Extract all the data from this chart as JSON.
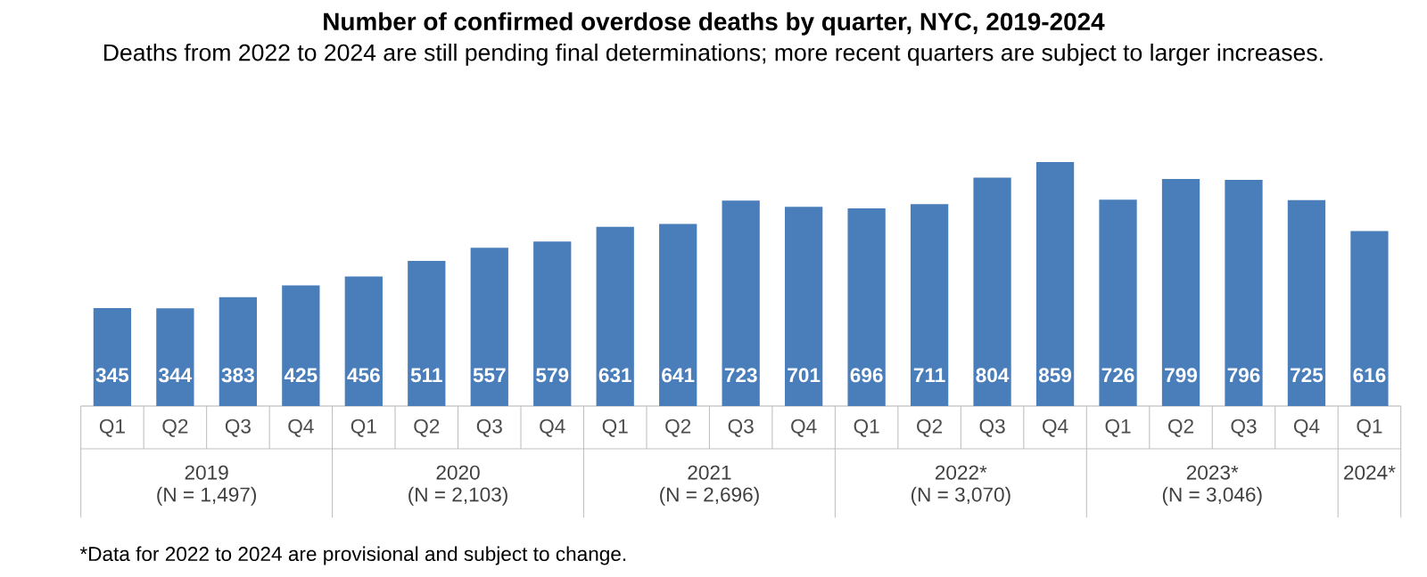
{
  "chart_data": {
    "type": "bar",
    "title": "Number of confirmed overdose deaths by quarter, NYC, 2019-2024",
    "subtitle": "Deaths from 2022 to 2024 are still pending final determinations; more recent quarters are subject to larger increases.",
    "categories": [
      "Q1",
      "Q2",
      "Q3",
      "Q4",
      "Q1",
      "Q2",
      "Q3",
      "Q4",
      "Q1",
      "Q2",
      "Q3",
      "Q4",
      "Q1",
      "Q2",
      "Q3",
      "Q4",
      "Q1",
      "Q2",
      "Q3",
      "Q4",
      "Q1"
    ],
    "values": [
      345,
      344,
      383,
      425,
      456,
      511,
      557,
      579,
      631,
      641,
      723,
      701,
      696,
      711,
      804,
      859,
      726,
      799,
      796,
      725,
      616
    ],
    "color": "#4a7ebb",
    "data_labels": true,
    "annotations": [
      "2019",
      "(N = 1,497)",
      "2020",
      "(N = 2,103)",
      "2021",
      "(N = 2,696)",
      "2022*",
      "(N = 3,070)",
      "2023*",
      "(N = 3,046)",
      "2024*",
      "*Data for 2022 to 2024 are provisional and subject to change."
    ]
  }
}
